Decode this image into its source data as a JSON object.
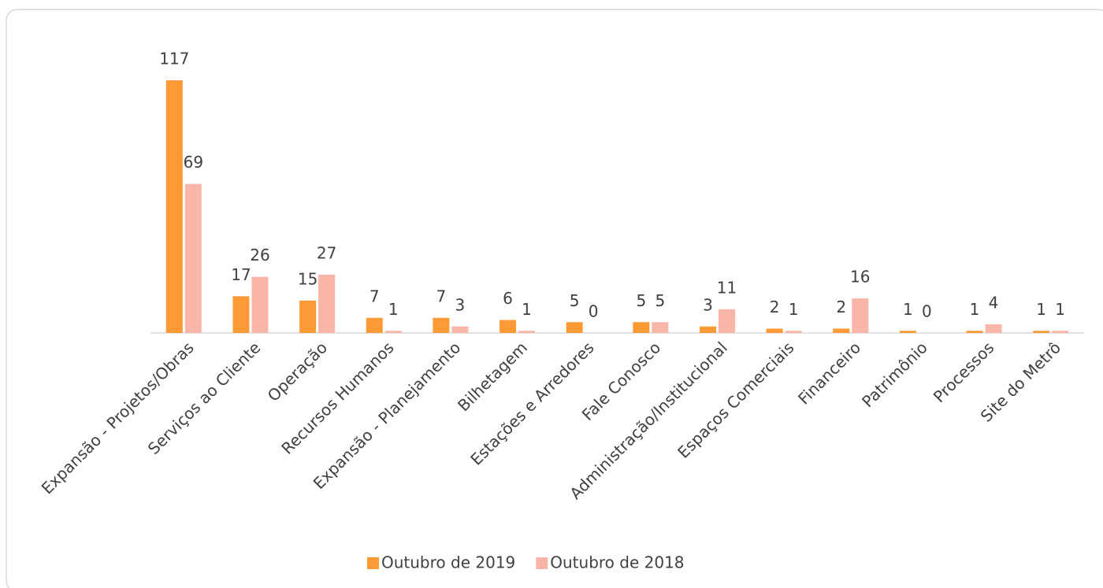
{
  "chart_data": {
    "type": "bar",
    "categories": [
      "Expansão - Projetos/Obras",
      "Serviços ao Cliente",
      "Operação",
      "Recursos Humanos",
      "Expansão - Planejamento",
      "Bilhetagem",
      "Estações e Arredores",
      "Fale Conosco",
      "Administração/Institucional",
      "Espaços Comerciais",
      "Financeiro",
      "Patrimônio",
      "Processos",
      "Site do Metrô"
    ],
    "series": [
      {
        "name": "Outubro de 2019",
        "color": "#fd9a35",
        "values": [
          117,
          17,
          15,
          7,
          7,
          6,
          5,
          5,
          3,
          2,
          2,
          1,
          1,
          1
        ]
      },
      {
        "name": "Outubro de 2018",
        "color": "#f9b5a7",
        "values": [
          69,
          26,
          27,
          1,
          3,
          1,
          0,
          5,
          11,
          1,
          16,
          0,
          4,
          1
        ]
      }
    ],
    "legend": "bottom"
  }
}
